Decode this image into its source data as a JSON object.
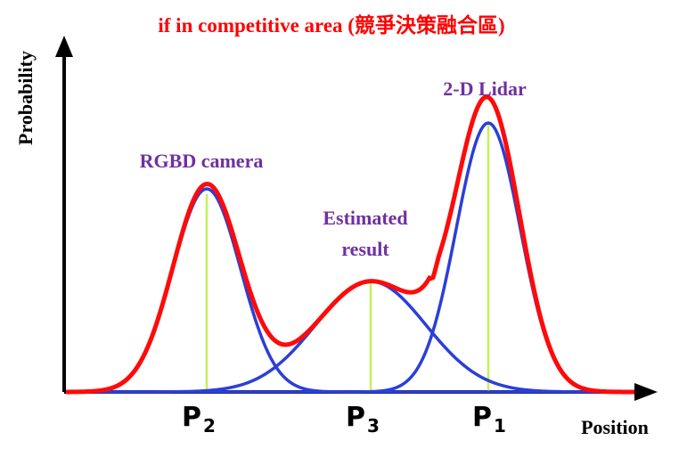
{
  "title": "if in competitive area (競爭決策融合區)",
  "axes": {
    "y_label": "Probability",
    "x_label": "Position"
  },
  "labels": {
    "rgbd": "RGBD camera",
    "estimated_line1": "Estimated",
    "estimated_line2": "result",
    "lidar": "2-D Lidar"
  },
  "points": [
    {
      "letter": "P",
      "sub": "2"
    },
    {
      "letter": "P",
      "sub": "3"
    },
    {
      "letter": "P",
      "sub": "1"
    }
  ],
  "colors": {
    "title": "#ff0000",
    "sensor_label": "#7030a0",
    "gaussian_curve": "#2b3fd8",
    "fused_curve": "#ff0a0a",
    "peak_line": "#c6f05a",
    "axis": "#000000"
  }
}
